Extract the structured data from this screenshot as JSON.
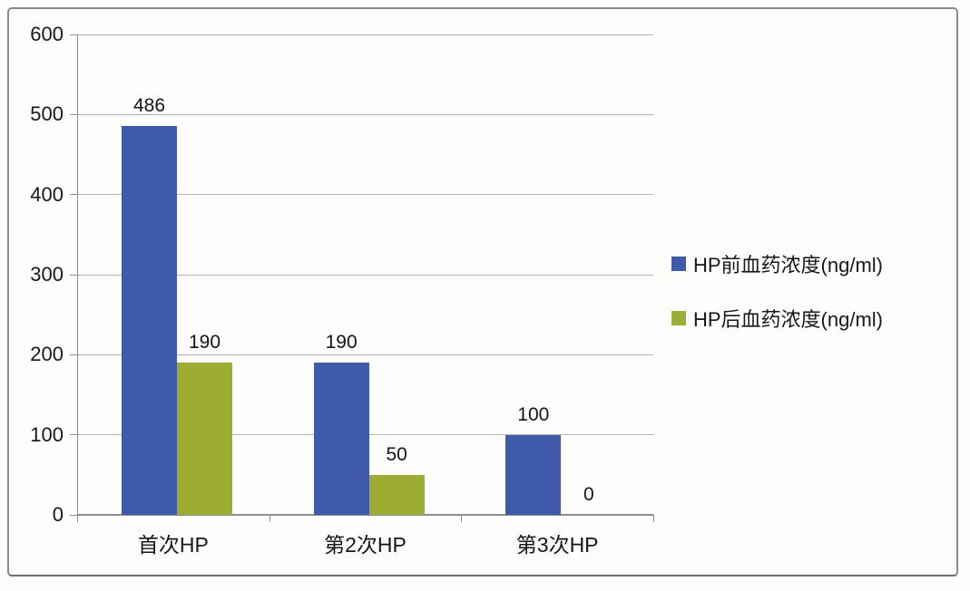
{
  "chart_data": {
    "type": "bar",
    "title": "",
    "xlabel": "",
    "ylabel": "",
    "categories": [
      "首次HP",
      "第2次HP",
      "第3次HP"
    ],
    "series": [
      {
        "name": "HP前血药浓度(ng/ml)",
        "color": "#3f5aa8",
        "values": [
          486,
          190,
          100
        ]
      },
      {
        "name": "HP后血药浓度(ng/ml)",
        "color": "#9dad33",
        "values": [
          190,
          50,
          0
        ]
      }
    ],
    "data_labels": [
      [
        "486",
        "190"
      ],
      [
        "190",
        "50"
      ],
      [
        "100",
        "0"
      ]
    ],
    "ylim": [
      0,
      600
    ],
    "yticks": [
      "0",
      "100",
      "200",
      "300",
      "400",
      "500",
      "600"
    ],
    "grid": true,
    "legend_position": "right"
  },
  "colors": {
    "series_blue": "#3f5aa8",
    "series_green": "#9dad33",
    "gridline": "#b2b2b2",
    "axis": "#8c8c8c",
    "text": "#181818",
    "frame_border": "#8a8a8a"
  }
}
